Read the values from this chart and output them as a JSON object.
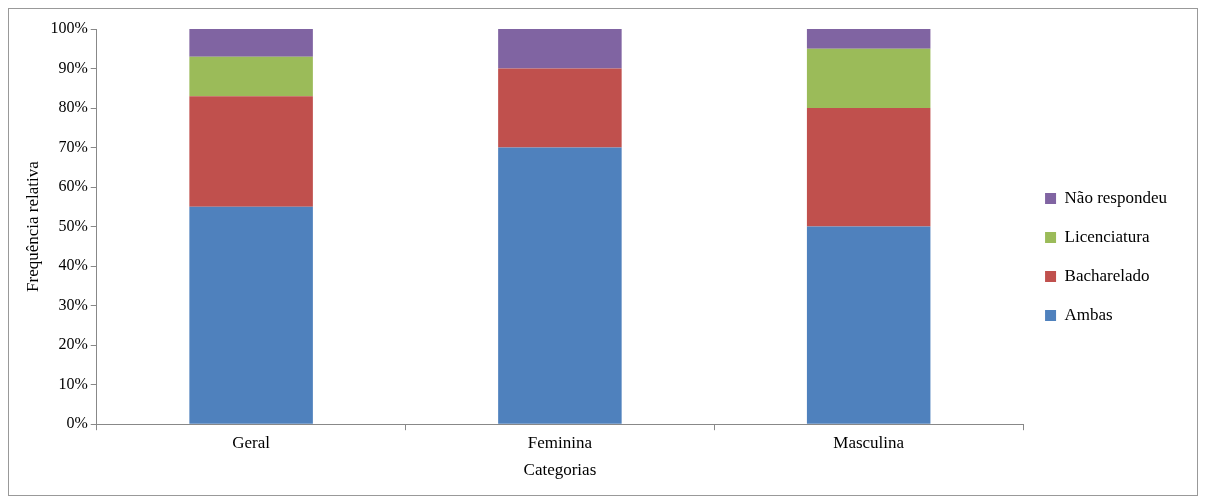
{
  "chart_data": {
    "type": "bar",
    "stacked": true,
    "xlabel": "Categorias",
    "ylabel": "Frequência relativa",
    "categories": [
      "Geral",
      "Feminina",
      "Masculina"
    ],
    "series": [
      {
        "name": "Ambas",
        "color": "#4f81bd",
        "values": [
          55,
          70,
          50
        ]
      },
      {
        "name": "Bacharelado",
        "color": "#c0504d",
        "values": [
          28,
          20,
          30
        ]
      },
      {
        "name": "Licenciatura",
        "color": "#9bbb59",
        "values": [
          10,
          0,
          15
        ]
      },
      {
        "name": "Não respondeu",
        "color": "#8064a2",
        "values": [
          7,
          10,
          5
        ]
      }
    ],
    "ylim": [
      0,
      100
    ],
    "yticks": [
      {
        "value": 0,
        "label": "0%"
      },
      {
        "value": 10,
        "label": "10%"
      },
      {
        "value": 20,
        "label": "20%"
      },
      {
        "value": 30,
        "label": "30%"
      },
      {
        "value": 40,
        "label": "40%"
      },
      {
        "value": 50,
        "label": "50%"
      },
      {
        "value": 60,
        "label": "60%"
      },
      {
        "value": 70,
        "label": "70%"
      },
      {
        "value": 80,
        "label": "80%"
      },
      {
        "value": 90,
        "label": "90%"
      },
      {
        "value": 100,
        "label": "100%"
      }
    ],
    "grid": false,
    "legend": "right"
  }
}
